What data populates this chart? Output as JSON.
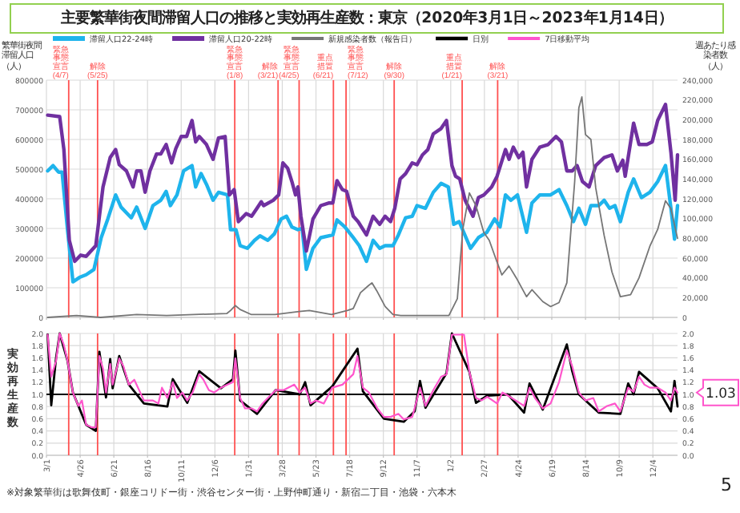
{
  "chart_data": [
    {
      "type": "line",
      "title": "主要繁華街夜間滞留人口の推移と実効再生産数：東京（2020年3月1日～2023年1月14日）",
      "ylabel": "繁華街夜間滞留人口（人）",
      "y2label": "週あたり感染者数（人）",
      "legend": "top",
      "grid": true,
      "tick_labels": "y",
      "xlim": [
        "2020-03-01",
        "2023-01-14"
      ],
      "xticks": [
        {
          "value": "2020-03-01",
          "label": null
        },
        {
          "value": "2020-04-26",
          "label": null
        },
        {
          "value": "2020-06-21",
          "label": null
        },
        {
          "value": "2020-08-16",
          "label": null
        },
        {
          "value": "2020-10-11",
          "label": null
        },
        {
          "value": "2020-12-06",
          "label": null
        },
        {
          "value": "2021-01-31",
          "label": null
        },
        {
          "value": "2021-03-28",
          "label": null
        },
        {
          "value": "2021-05-23",
          "label": null
        },
        {
          "value": "2021-07-18",
          "label": null
        },
        {
          "value": "2021-09-12",
          "label": null
        },
        {
          "value": "2021-11-07",
          "label": null
        },
        {
          "value": "2022-01-02",
          "label": null
        },
        {
          "value": "2022-02-27",
          "label": null
        },
        {
          "value": "2022-04-24",
          "label": null
        },
        {
          "value": "2022-06-19",
          "label": null
        },
        {
          "value": "2022-08-14",
          "label": null
        },
        {
          "value": "2022-10-09",
          "label": null
        },
        {
          "value": "2022-12-04",
          "label": null
        }
      ],
      "ylim": [
        0,
        800000
      ],
      "yticks": [
        0,
        100000,
        200000,
        300000,
        400000,
        500000,
        600000,
        700000,
        800000
      ],
      "y2lim": [
        0,
        240000
      ],
      "y2ticks": [
        0,
        {
          "value": 20000,
          "label": "20,000"
        },
        {
          "value": 40000,
          "label": "40,000"
        },
        {
          "value": 60000,
          "label": "60,000"
        },
        {
          "value": 80000,
          "label": "80,000"
        },
        {
          "value": 100000,
          "label": "100,000"
        },
        {
          "value": 120000,
          "label": "120,000"
        },
        {
          "value": 140000,
          "label": "140,000"
        },
        {
          "value": 160000,
          "label": "160,000"
        },
        {
          "value": 180000,
          "label": "180,000"
        },
        {
          "value": 200000,
          "label": "200,000"
        },
        {
          "value": 220000,
          "label": "220,000"
        },
        {
          "value": 240000,
          "label": "240,000"
        }
      ],
      "ref_lines": [
        {
          "axis": "x",
          "value": "2020-04-07",
          "label": "緊急事態宣言(4/7)",
          "color": "#ff5050"
        },
        {
          "axis": "x",
          "value": "2020-05-25",
          "label": "解除(5/25)",
          "color": "#ff5050"
        },
        {
          "axis": "x",
          "value": "2021-01-08",
          "label": "緊急事態宣言(1/8)",
          "color": "#ff5050"
        },
        {
          "axis": "x",
          "value": "2021-03-21",
          "label": "解除(3/21)",
          "color": "#ff5050"
        },
        {
          "axis": "x",
          "value": "2021-04-25",
          "label": "緊急事態宣言(4/25)",
          "color": "#ff5050"
        },
        {
          "axis": "x",
          "value": "2021-06-21",
          "label": "重点措置(6/21)",
          "color": "#ff5050"
        },
        {
          "axis": "x",
          "value": "2021-07-12",
          "label": "緊急事態宣言(7/12)",
          "color": "#ff5050"
        },
        {
          "axis": "x",
          "value": "2021-09-30",
          "label": "解除(9/30)",
          "color": "#ff5050"
        },
        {
          "axis": "x",
          "value": "2022-01-21",
          "label": "重点措置(1/21)",
          "color": "#ff5050"
        },
        {
          "axis": "x",
          "value": "2022-03-21",
          "label": "解除(3/21)",
          "color": "#ff5050"
        }
      ],
      "series": [
        {
          "name": "滞留人口22-24時",
          "color": "#1eb4ec",
          "x": [
            "2020-03-03",
            "2020-03-12",
            "2020-03-21",
            "2020-03-27",
            "2020-04-05",
            "2020-04-14",
            "2020-04-25",
            "2020-05-06",
            "2020-05-19",
            "2020-05-31",
            "2020-06-11",
            "2020-06-24",
            "2020-07-03",
            "2020-07-20",
            "2020-07-29",
            "2020-08-12",
            "2020-08-25",
            "2020-09-07",
            "2020-09-16",
            "2020-09-23",
            "2020-10-04",
            "2020-10-15",
            "2020-10-29",
            "2020-11-04",
            "2020-11-13",
            "2020-11-22",
            "2020-12-03",
            "2020-12-12",
            "2020-12-27",
            "2021-01-01",
            "2021-01-10",
            "2021-01-17",
            "2021-01-29",
            "2021-02-10",
            "2021-02-19",
            "2021-03-04",
            "2021-03-15",
            "2021-03-26",
            "2021-04-04",
            "2021-04-13",
            "2021-04-23",
            "2021-04-30",
            "2021-05-07",
            "2021-05-18",
            "2021-05-31",
            "2021-06-20",
            "2021-06-27",
            "2021-07-10",
            "2021-07-24",
            "2021-08-03",
            "2021-08-15",
            "2021-08-26",
            "2021-09-06",
            "2021-09-15",
            "2021-09-28",
            "2021-10-07",
            "2021-10-19",
            "2021-10-30",
            "2021-11-07",
            "2021-11-21",
            "2021-12-04",
            "2021-12-17",
            "2021-12-29",
            "2022-01-07",
            "2022-01-16",
            "2022-02-04",
            "2022-02-17",
            "2022-03-03",
            "2022-03-16",
            "2022-03-25",
            "2022-04-03",
            "2022-04-12",
            "2022-04-23",
            "2022-05-08",
            "2022-05-17",
            "2022-05-30",
            "2022-06-17",
            "2022-07-01",
            "2022-07-14",
            "2022-07-25",
            "2022-08-03",
            "2022-08-14",
            "2022-08-23",
            "2022-09-05",
            "2022-09-14",
            "2022-09-23",
            "2022-10-02",
            "2022-10-11",
            "2022-10-24",
            "2022-11-02",
            "2022-11-15",
            "2022-11-29",
            "2022-12-12",
            "2022-12-25",
            "2023-01-03",
            "2023-01-09",
            "2023-01-14"
          ],
          "values": [
            494000,
            512000,
            490000,
            490000,
            296000,
            120000,
            135000,
            144000,
            162000,
            269000,
            332000,
            413000,
            372000,
            336000,
            372000,
            300000,
            377000,
            395000,
            425000,
            377000,
            413000,
            494000,
            512000,
            440000,
            485000,
            449000,
            395000,
            422000,
            413000,
            296000,
            296000,
            242000,
            233000,
            260000,
            275000,
            260000,
            282000,
            332000,
            341000,
            305000,
            296000,
            300000,
            162000,
            233000,
            269000,
            278000,
            329000,
            305000,
            269000,
            242000,
            189000,
            260000,
            233000,
            242000,
            242000,
            278000,
            336000,
            341000,
            377000,
            368000,
            422000,
            452000,
            440000,
            314000,
            323000,
            233000,
            269000,
            287000,
            332000,
            305000,
            413000,
            395000,
            413000,
            287000,
            386000,
            413000,
            413000,
            431000,
            377000,
            323000,
            368000,
            314000,
            377000,
            377000,
            395000,
            368000,
            377000,
            323000,
            422000,
            467000,
            404000,
            422000,
            458000,
            512000,
            368000,
            264000,
            377000
          ]
        },
        {
          "name": "滞留人口20-22時",
          "color": "#7030a0",
          "x": [
            "2020-03-03",
            "2020-03-23",
            "2020-03-30",
            "2020-04-08",
            "2020-04-17",
            "2020-04-27",
            "2020-05-06",
            "2020-05-22",
            "2020-06-03",
            "2020-06-15",
            "2020-06-24",
            "2020-06-30",
            "2020-07-12",
            "2020-07-23",
            "2020-07-29",
            "2020-08-05",
            "2020-08-12",
            "2020-08-20",
            "2020-08-31",
            "2020-09-07",
            "2020-09-16",
            "2020-09-25",
            "2020-10-02",
            "2020-10-11",
            "2020-10-20",
            "2020-10-29",
            "2020-11-04",
            "2020-11-10",
            "2020-11-22",
            "2020-12-03",
            "2020-12-12",
            "2020-12-23",
            "2020-12-30",
            "2021-01-07",
            "2021-01-14",
            "2021-01-27",
            "2021-02-05",
            "2021-02-14",
            "2021-02-21",
            "2021-02-25",
            "2021-03-13",
            "2021-03-22",
            "2021-03-29",
            "2021-04-06",
            "2021-04-13",
            "2021-04-19",
            "2021-04-23",
            "2021-04-28",
            "2021-05-07",
            "2021-05-18",
            "2021-05-31",
            "2021-06-14",
            "2021-06-20",
            "2021-06-27",
            "2021-07-06",
            "2021-07-13",
            "2021-07-24",
            "2021-08-01",
            "2021-08-15",
            "2021-08-26",
            "2021-09-06",
            "2021-09-15",
            "2021-09-24",
            "2021-10-01",
            "2021-10-10",
            "2021-10-19",
            "2021-10-30",
            "2021-11-07",
            "2021-11-16",
            "2021-11-25",
            "2021-12-04",
            "2021-12-17",
            "2021-12-26",
            "2022-01-04",
            "2022-01-10",
            "2022-01-17",
            "2022-01-26",
            "2022-02-08",
            "2022-02-17",
            "2022-02-26",
            "2022-03-11",
            "2022-03-20",
            "2022-04-03",
            "2022-04-09",
            "2022-04-16",
            "2022-04-25",
            "2022-05-02",
            "2022-05-08",
            "2022-05-17",
            "2022-05-30",
            "2022-06-13",
            "2022-06-26",
            "2022-07-05",
            "2022-07-14",
            "2022-07-23",
            "2022-07-31",
            "2022-08-09",
            "2022-08-20",
            "2022-08-31",
            "2022-09-14",
            "2022-09-27",
            "2022-10-06",
            "2022-10-15",
            "2022-10-19",
            "2022-11-02",
            "2022-11-11",
            "2022-11-24",
            "2022-12-03",
            "2022-12-12",
            "2022-12-25",
            "2023-01-03",
            "2023-01-10",
            "2023-01-14"
          ],
          "values": [
            682000,
            677000,
            566000,
            260000,
            189000,
            210000,
            206000,
            242000,
            440000,
            539000,
            566000,
            515000,
            494000,
            440000,
            494000,
            494000,
            422000,
            494000,
            551000,
            551000,
            583000,
            521000,
            569000,
            610000,
            610000,
            664000,
            592000,
            610000,
            583000,
            533000,
            605000,
            610000,
            413000,
            431000,
            323000,
            350000,
            341000,
            368000,
            390000,
            377000,
            395000,
            413000,
            521000,
            503000,
            458000,
            413000,
            440000,
            341000,
            224000,
            332000,
            377000,
            386000,
            386000,
            461000,
            431000,
            425000,
            341000,
            323000,
            278000,
            341000,
            314000,
            341000,
            323000,
            368000,
            467000,
            485000,
            521000,
            515000,
            548000,
            566000,
            619000,
            637000,
            664000,
            512000,
            476000,
            467000,
            395000,
            341000,
            404000,
            413000,
            440000,
            476000,
            566000,
            533000,
            574000,
            539000,
            557000,
            440000,
            533000,
            574000,
            583000,
            610000,
            592000,
            494000,
            494000,
            512000,
            458000,
            440000,
            512000,
            539000,
            548000,
            494000,
            530000,
            476000,
            655000,
            583000,
            583000,
            592000,
            664000,
            718000,
            557000,
            395000,
            548000
          ]
        },
        {
          "name": "新規感染者数（報告日）",
          "color": "#767676",
          "axis": "y2",
          "x": [
            "2020-03-03",
            "2020-04-20",
            "2020-05-30",
            "2020-07-29",
            "2020-09-17",
            "2020-12-26",
            "2021-01-01",
            "2021-01-09",
            "2021-01-17",
            "2021-02-04",
            "2021-03-16",
            "2021-04-25",
            "2021-05-12",
            "2021-06-18",
            "2021-07-14",
            "2021-07-24",
            "2021-08-05",
            "2021-08-18",
            "2021-08-24",
            "2021-09-01",
            "2021-09-15",
            "2021-09-28",
            "2021-10-11",
            "2021-12-30",
            "2022-01-13",
            "2022-01-22",
            "2022-02-02",
            "2022-02-13",
            "2022-02-26",
            "2022-03-07",
            "2022-03-20",
            "2022-03-28",
            "2022-04-09",
            "2022-04-21",
            "2022-05-08",
            "2022-05-17",
            "2022-06-04",
            "2022-06-17",
            "2022-07-01",
            "2022-07-14",
            "2022-07-27",
            "2022-08-03",
            "2022-08-08",
            "2022-08-14",
            "2022-08-23",
            "2022-08-31",
            "2022-09-14",
            "2022-09-27",
            "2022-10-11",
            "2022-10-28",
            "2022-11-11",
            "2022-11-29",
            "2022-12-12",
            "2022-12-25",
            "2023-01-03",
            "2023-01-14"
          ],
          "values": [
            0,
            2000,
            0,
            3000,
            2000,
            4000,
            7000,
            12000,
            8000,
            3000,
            3000,
            6000,
            7000,
            3000,
            7000,
            9000,
            25000,
            32000,
            35000,
            27000,
            11000,
            3000,
            2000,
            2000,
            19000,
            89000,
            126000,
            113000,
            86000,
            78000,
            56000,
            43000,
            52000,
            40000,
            21000,
            28000,
            16000,
            11000,
            15000,
            35000,
            137000,
            212000,
            223000,
            185000,
            180000,
            131000,
            83000,
            46000,
            21000,
            23000,
            40000,
            72000,
            89000,
            118000,
            110000,
            80000
          ]
        }
      ]
    },
    {
      "type": "line",
      "ylabel": "実効再生産数",
      "legend": "top",
      "grid": true,
      "xlim": [
        "2020-03-01",
        "2023-01-14"
      ],
      "xticks": [
        {
          "value": "2020-03-01",
          "label": "3/1"
        },
        {
          "value": "2020-04-26",
          "label": "4/26"
        },
        {
          "value": "2020-06-21",
          "label": "6/21"
        },
        {
          "value": "2020-08-16",
          "label": "8/16"
        },
        {
          "value": "2020-10-11",
          "label": "10/11"
        },
        {
          "value": "2020-12-06",
          "label": "12/6"
        },
        {
          "value": "2021-01-31",
          "label": "1/31"
        },
        {
          "value": "2021-03-28",
          "label": "3/28"
        },
        {
          "value": "2021-05-23",
          "label": "5/23"
        },
        {
          "value": "2021-07-18",
          "label": "7/18"
        },
        {
          "value": "2021-09-12",
          "label": "9/12"
        },
        {
          "value": "2021-11-07",
          "label": "11/7"
        },
        {
          "value": "2022-01-02",
          "label": "1/2"
        },
        {
          "value": "2022-02-27",
          "label": "2/27"
        },
        {
          "value": "2022-04-24",
          "label": "4/24"
        },
        {
          "value": "2022-06-19",
          "label": "6/19"
        },
        {
          "value": "2022-08-14",
          "label": "8/14"
        },
        {
          "value": "2022-10-09",
          "label": "10/9"
        },
        {
          "value": "2022-12-04",
          "label": "12/4"
        }
      ],
      "ylim": [
        0,
        2
      ],
      "yticks": [
        {
          "value": 0,
          "label": "0.0"
        },
        {
          "value": 0.2,
          "label": "0.2"
        },
        {
          "value": 0.4,
          "label": "0.4"
        },
        {
          "value": 0.6,
          "label": "0.6"
        },
        {
          "value": 0.8,
          "label": "0.8"
        },
        {
          "value": 1,
          "label": "1.0"
        },
        {
          "value": 1.2,
          "label": "1.2"
        },
        {
          "value": 1.4,
          "label": "1.4"
        },
        {
          "value": 1.6,
          "label": "1.6"
        },
        {
          "value": 1.8,
          "label": "1.8"
        },
        {
          "value": 2,
          "label": "2.0"
        }
      ],
      "y2lim": [
        0,
        2
      ],
      "y2ticks": [
        {
          "value": 0,
          "label": "0.0"
        },
        {
          "value": 0.2,
          "label": "0.2"
        },
        {
          "value": 0.4,
          "label": "0.4"
        },
        {
          "value": 0.6,
          "label": "0.6"
        },
        {
          "value": 0.8,
          "label": "0.8"
        },
        {
          "value": 1,
          "label": "1.0"
        },
        {
          "value": 1.2,
          "label": "1.2"
        },
        {
          "value": 1.4,
          "label": "1.4"
        },
        {
          "value": 1.6,
          "label": "1.6"
        },
        {
          "value": 1.8,
          "label": "1.8"
        },
        {
          "value": 2,
          "label": "2.0"
        }
      ],
      "ref_lines": [
        {
          "axis": "y",
          "value": 1,
          "color": "#000000"
        },
        {
          "axis": "x",
          "value": "2020-04-07",
          "color": "#ff5050"
        },
        {
          "axis": "x",
          "value": "2020-05-25",
          "color": "#ff5050"
        },
        {
          "axis": "x",
          "value": "2021-01-08",
          "color": "#ff5050"
        },
        {
          "axis": "x",
          "value": "2021-03-21",
          "color": "#ff5050"
        },
        {
          "axis": "x",
          "value": "2021-04-25",
          "color": "#ff5050"
        },
        {
          "axis": "x",
          "value": "2021-06-21",
          "color": "#ff5050"
        },
        {
          "axis": "x",
          "value": "2021-07-12",
          "color": "#ff5050"
        },
        {
          "axis": "x",
          "value": "2021-09-30",
          "color": "#ff5050"
        },
        {
          "axis": "x",
          "value": "2022-01-21",
          "color": "#ff5050"
        },
        {
          "axis": "x",
          "value": "2022-03-21",
          "color": "#ff5050"
        }
      ],
      "annotations": [
        {
          "text": "1.03",
          "x": "2023-01-14",
          "y": 1.03
        },
        "※対象繁華街は歌舞伎町・銀座コリドー街・渋谷センター街・上野仲町通り・新宿二丁目・池袋・六本木",
        "5"
      ],
      "series": [
        {
          "name": "日別",
          "color": "#000000",
          "x": [
            "2020-03-03",
            "2020-03-09",
            "2020-03-17",
            "2020-03-23",
            "2020-04-05",
            "2020-04-14",
            "2020-05-06",
            "2020-05-22",
            "2020-05-28",
            "2020-06-08",
            "2020-06-15",
            "2020-06-19",
            "2020-06-30",
            "2020-07-16",
            "2020-08-10",
            "2020-09-18",
            "2020-09-27",
            "2020-10-21",
            "2020-11-10",
            "2020-12-16",
            "2021-01-05",
            "2021-01-09",
            "2021-01-17",
            "2021-02-14",
            "2021-03-17",
            "2021-04-26",
            "2021-05-05",
            "2021-05-14",
            "2021-06-19",
            "2021-07-31",
            "2021-08-09",
            "2021-09-13",
            "2021-10-16",
            "2021-11-03",
            "2021-11-12",
            "2021-11-21",
            "2021-12-26",
            "2022-01-04",
            "2022-02-02",
            "2022-02-13",
            "2022-03-04",
            "2022-04-07",
            "2022-05-04",
            "2022-05-13",
            "2022-06-04",
            "2022-07-14",
            "2022-07-23",
            "2022-08-03",
            "2022-09-05",
            "2022-10-11",
            "2022-10-24",
            "2022-11-02",
            "2022-11-11",
            "2022-12-12",
            "2023-01-03",
            "2023-01-09",
            "2023-01-14"
          ],
          "values": [
            1.98,
            0.82,
            1.6,
            2.0,
            1.55,
            1.03,
            0.5,
            0.4,
            1.7,
            0.95,
            1.58,
            1.1,
            1.63,
            1.16,
            0.85,
            0.8,
            1.25,
            0.86,
            1.38,
            1.1,
            1.25,
            1.72,
            0.9,
            0.68,
            1.07,
            1.0,
            1.2,
            0.82,
            1.13,
            1.75,
            1.05,
            0.6,
            0.55,
            0.72,
            1.22,
            0.78,
            1.35,
            2.0,
            1.37,
            0.86,
            0.98,
            1.0,
            0.7,
            1.18,
            0.75,
            1.82,
            1.38,
            1.0,
            0.7,
            0.68,
            1.18,
            1.0,
            1.37,
            1.1,
            0.72,
            1.22,
            0.8
          ]
        },
        {
          "name": "7日移動平均",
          "color": "#ff55cc",
          "x": [
            "2020-03-03",
            "2020-03-09",
            "2020-03-17",
            "2020-03-23",
            "2020-03-30",
            "2020-04-05",
            "2020-04-14",
            "2020-04-23",
            "2020-04-29",
            "2020-05-06",
            "2020-05-15",
            "2020-05-22",
            "2020-05-28",
            "2020-06-03",
            "2020-06-08",
            "2020-06-15",
            "2020-06-19",
            "2020-06-30",
            "2020-07-07",
            "2020-07-16",
            "2020-07-25",
            "2020-08-10",
            "2020-08-25",
            "2020-09-03",
            "2020-09-09",
            "2020-09-18",
            "2020-09-27",
            "2020-10-04",
            "2020-10-13",
            "2020-10-21",
            "2020-10-30",
            "2020-11-10",
            "2020-11-17",
            "2020-11-26",
            "2020-12-05",
            "2020-12-16",
            "2020-12-27",
            "2021-01-05",
            "2021-01-09",
            "2021-01-17",
            "2021-01-25",
            "2021-02-05",
            "2021-02-14",
            "2021-02-23",
            "2021-03-08",
            "2021-03-17",
            "2021-03-30",
            "2021-04-17",
            "2021-04-26",
            "2021-05-05",
            "2021-05-14",
            "2021-05-23",
            "2021-06-05",
            "2021-06-19",
            "2021-07-06",
            "2021-07-24",
            "2021-07-31",
            "2021-08-09",
            "2021-08-19",
            "2021-09-02",
            "2021-09-13",
            "2021-09-24",
            "2021-10-07",
            "2021-10-16",
            "2021-10-30",
            "2021-11-03",
            "2021-11-12",
            "2021-11-21",
            "2021-12-04",
            "2021-12-17",
            "2021-12-26",
            "2022-01-04",
            "2022-01-24",
            "2022-02-02",
            "2022-02-13",
            "2022-02-22",
            "2022-03-04",
            "2022-03-20",
            "2022-03-29",
            "2022-04-07",
            "2022-04-20",
            "2022-05-04",
            "2022-05-13",
            "2022-05-22",
            "2022-06-04",
            "2022-06-17",
            "2022-07-01",
            "2022-07-14",
            "2022-07-23",
            "2022-08-03",
            "2022-08-14",
            "2022-08-27",
            "2022-09-05",
            "2022-09-19",
            "2022-10-02",
            "2022-10-11",
            "2022-10-24",
            "2022-11-02",
            "2022-11-11",
            "2022-11-20",
            "2022-11-29",
            "2022-12-12",
            "2022-12-25",
            "2023-01-03",
            "2023-01-09",
            "2023-01-14"
          ],
          "values": [
            1.98,
            1.29,
            1.55,
            2.0,
            1.81,
            1.55,
            1.03,
            0.81,
            0.9,
            0.5,
            0.46,
            0.46,
            1.63,
            1.42,
            1.03,
            1.5,
            1.16,
            1.59,
            1.46,
            1.16,
            1.24,
            0.9,
            0.9,
            0.85,
            1.11,
            0.94,
            1.2,
            0.94,
            1.03,
            0.9,
            1.03,
            1.33,
            1.24,
            1.07,
            1.03,
            1.11,
            1.16,
            1.2,
            1.59,
            0.94,
            0.77,
            0.77,
            0.72,
            0.85,
            0.98,
            1.07,
            1.07,
            1.16,
            1.03,
            1.11,
            0.85,
            0.9,
            0.85,
            1.11,
            1.16,
            1.33,
            1.63,
            1.11,
            1.03,
            0.77,
            0.63,
            0.63,
            0.68,
            0.59,
            0.63,
            0.77,
            1.11,
            0.81,
            1.07,
            1.29,
            1.33,
            1.98,
            1.98,
            1.37,
            0.94,
            0.9,
            0.96,
            0.85,
            1.03,
            0.98,
            0.9,
            0.81,
            1.11,
            0.94,
            0.77,
            0.85,
            1.2,
            1.72,
            1.46,
            1.03,
            0.9,
            0.94,
            0.72,
            0.81,
            0.85,
            0.72,
            1.11,
            1.04,
            1.29,
            1.16,
            1.11,
            1.11,
            1.03,
            0.9,
            1.11,
            1.03
          ]
        }
      ]
    }
  ]
}
